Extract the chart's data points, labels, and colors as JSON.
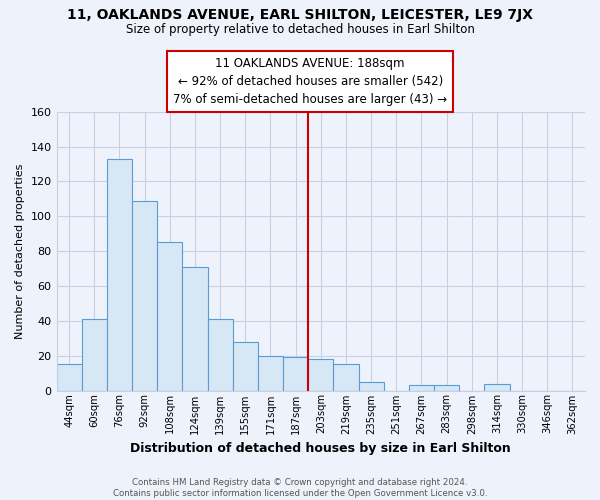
{
  "title": "11, OAKLANDS AVENUE, EARL SHILTON, LEICESTER, LE9 7JX",
  "subtitle": "Size of property relative to detached houses in Earl Shilton",
  "xlabel": "Distribution of detached houses by size in Earl Shilton",
  "ylabel": "Number of detached properties",
  "bar_labels": [
    "44sqm",
    "60sqm",
    "76sqm",
    "92sqm",
    "108sqm",
    "124sqm",
    "139sqm",
    "155sqm",
    "171sqm",
    "187sqm",
    "203sqm",
    "219sqm",
    "235sqm",
    "251sqm",
    "267sqm",
    "283sqm",
    "298sqm",
    "314sqm",
    "330sqm",
    "346sqm",
    "362sqm"
  ],
  "bar_heights": [
    15,
    41,
    133,
    109,
    85,
    71,
    41,
    28,
    20,
    19,
    18,
    15,
    5,
    0,
    3,
    3,
    0,
    4,
    0,
    0,
    0
  ],
  "bar_color": "#d6e8f5",
  "bar_edge_color": "#5b9bd5",
  "ylim": [
    0,
    160
  ],
  "yticks": [
    0,
    20,
    40,
    60,
    80,
    100,
    120,
    140,
    160
  ],
  "vline_x_index": 9.5,
  "vline_color": "#cc0000",
  "annotation_title": "11 OAKLANDS AVENUE: 188sqm",
  "annotation_line1": "← 92% of detached houses are smaller (542)",
  "annotation_line2": "7% of semi-detached houses are larger (43) →",
  "footer_line1": "Contains HM Land Registry data © Crown copyright and database right 2024.",
  "footer_line2": "Contains public sector information licensed under the Open Government Licence v3.0.",
  "bg_color": "#eef2fb",
  "grid_color": "#c8d0e8"
}
